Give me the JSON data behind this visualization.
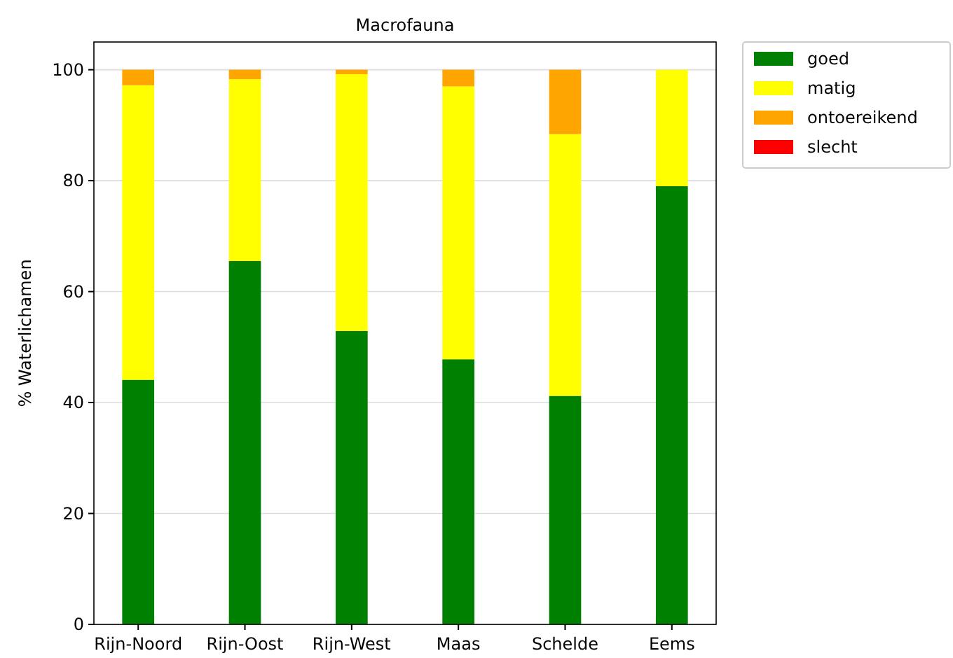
{
  "chart_data": {
    "type": "bar",
    "title": "Macrofauna",
    "ylabel": "% Waterlichamen",
    "categories": [
      "Rijn-Noord",
      "Rijn-Oost",
      "Rijn-West",
      "Maas",
      "Schelde",
      "Eems"
    ],
    "stacked": true,
    "series": [
      {
        "name": "goed",
        "color": "#008000",
        "values": [
          44.1,
          65.5,
          52.9,
          47.8,
          41.2,
          79.0
        ]
      },
      {
        "name": "matig",
        "color": "#ffff00",
        "values": [
          53.1,
          32.8,
          46.3,
          49.2,
          47.2,
          21.0
        ]
      },
      {
        "name": "ontoereikend",
        "color": "#ffa500",
        "values": [
          2.8,
          1.7,
          0.8,
          3.0,
          11.6,
          0
        ]
      },
      {
        "name": "slecht",
        "color": "#ff0000",
        "values": [
          0,
          0,
          0,
          0,
          0,
          0
        ]
      }
    ],
    "ylim": [
      0,
      105
    ],
    "yticks": [
      0,
      20,
      40,
      60,
      80,
      100
    ],
    "grid": "y",
    "legend": "top right"
  }
}
